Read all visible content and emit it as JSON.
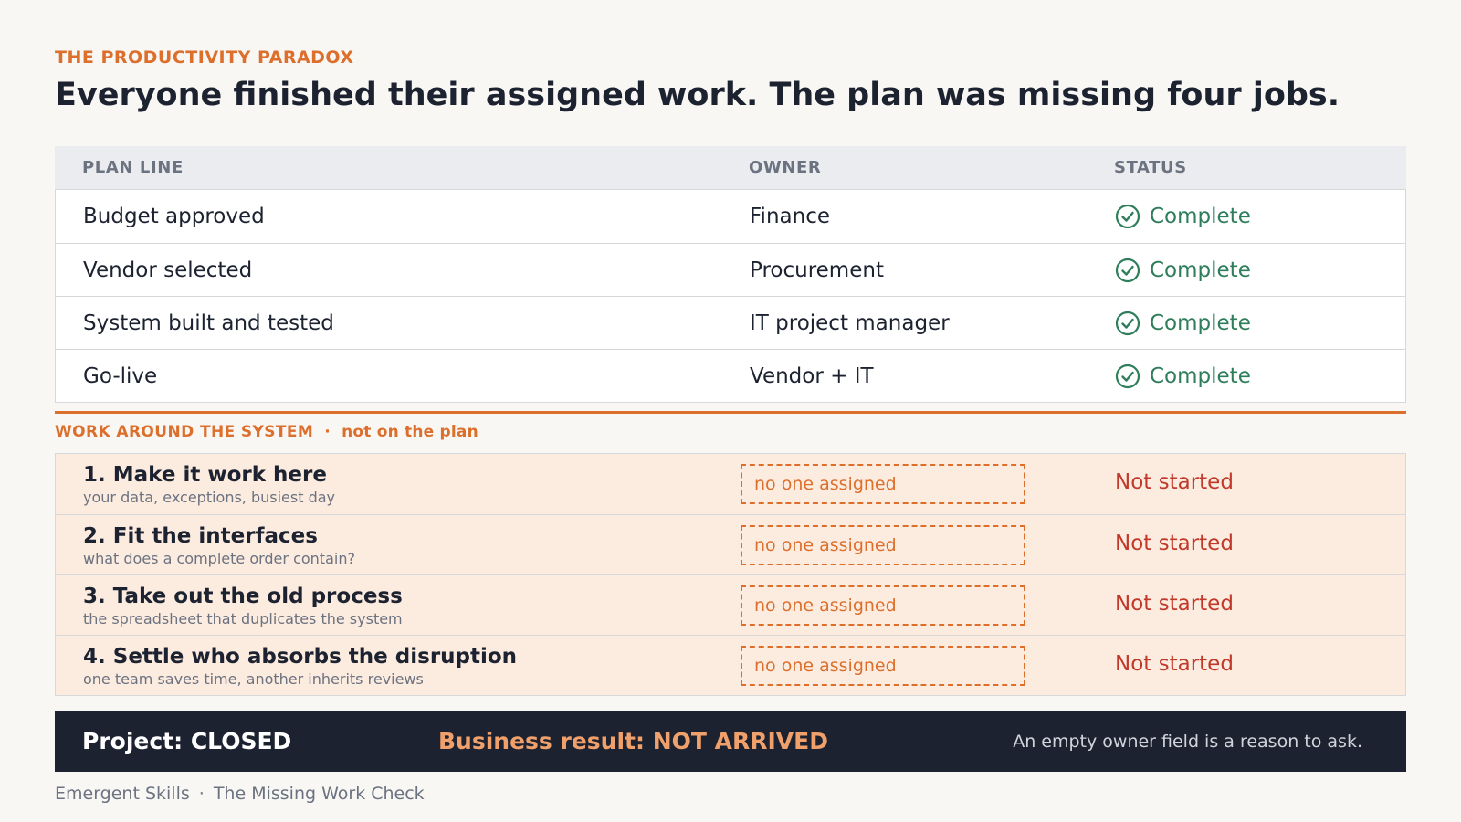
{
  "eyebrow": "THE PRODUCTIVITY PARADOX",
  "headline": "Everyone finished their assigned work. The plan was missing four jobs.",
  "plan_table": {
    "headers": [
      "PLAN LINE",
      "OWNER",
      "STATUS"
    ],
    "rows": [
      {
        "line": "Budget approved",
        "owner": "Finance",
        "status": "Complete"
      },
      {
        "line": "Vendor selected",
        "owner": "Procurement",
        "status": "Complete"
      },
      {
        "line": "System built and tested",
        "owner": "IT project manager",
        "status": "Complete"
      },
      {
        "line": "Go-live",
        "owner": "Vendor + IT",
        "status": "Complete"
      }
    ]
  },
  "work_section": {
    "label": "WORK AROUND THE SYSTEM",
    "separator": "·",
    "tag": "not on the plan",
    "rows": [
      {
        "title": "1. Make it work here",
        "subtitle": "your data, exceptions, busiest day",
        "owner": "no one assigned",
        "status": "Not started"
      },
      {
        "title": "2. Fit the interfaces",
        "subtitle": "what does a complete order contain?",
        "owner": "no one assigned",
        "status": "Not started"
      },
      {
        "title": "3. Take out the old process",
        "subtitle": "the spreadsheet that duplicates the system",
        "owner": "no one assigned",
        "status": "Not started"
      },
      {
        "title": "4. Settle who absorbs the disruption",
        "subtitle": "one team saves time, another inherits reviews",
        "owner": "no one assigned",
        "status": "Not started"
      }
    ]
  },
  "footer": {
    "project_status": "Project: CLOSED",
    "business_result": "Business result: NOT ARRIVED",
    "note": "An empty owner field is a reason to ask."
  },
  "credit": {
    "brand": "Emergent Skills",
    "separator": "·",
    "title": "The Missing Work Check"
  },
  "colors": {
    "accent": "#dd6f2c",
    "complete": "#2e7d5b",
    "not_started": "#c0392b",
    "dark_bar": "#1c2230"
  },
  "icons": {
    "complete": "check-circle-icon"
  }
}
